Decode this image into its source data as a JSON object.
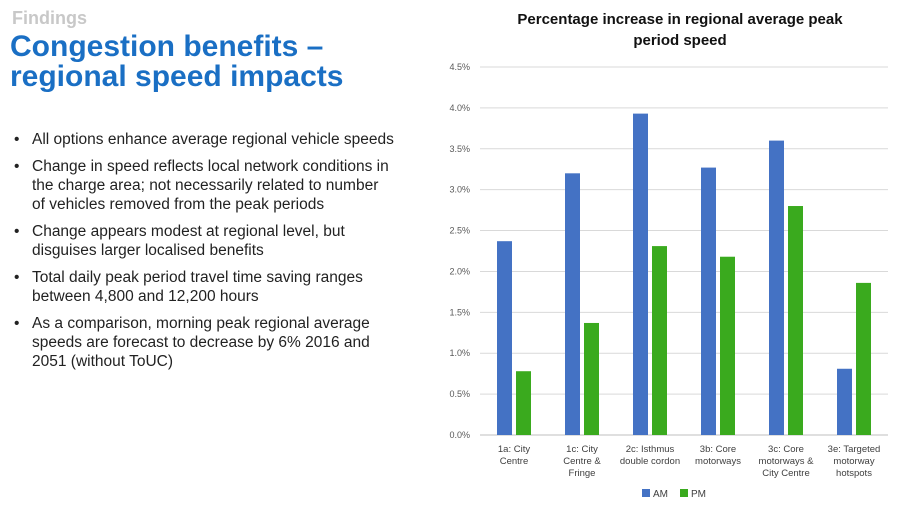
{
  "slide": {
    "section": "Findings",
    "title_line1": "Congestion benefits –",
    "title_line2": "regional speed impacts",
    "bullets": [
      "All options enhance average regional vehicle speeds",
      "Change in speed reflects local network conditions in the charge area; not necessarily related to number of vehicles removed from the peak periods",
      "Change appears modest at regional level, but disguises larger localised benefits",
      "Total daily peak period travel time saving ranges between 4,800 and 12,200 hours",
      "As a comparison, morning peak regional average speeds are forecast to decrease by 6% 2016 and 2051 (without ToUC)"
    ]
  },
  "colors": {
    "am": "#4472c4",
    "pm": "#3aaa1e",
    "title_blue": "#1a6fc4"
  },
  "chart_data": {
    "type": "bar",
    "title_line1": "Percentage increase in regional average peak",
    "title_line2": "period speed",
    "categories": [
      [
        "1a: City",
        "Centre"
      ],
      [
        "1c: City",
        "Centre &",
        "Fringe"
      ],
      [
        "2c: Isthmus",
        "double cordon"
      ],
      [
        "3b: Core",
        "motorways"
      ],
      [
        "3c: Core",
        "motorways &",
        "City Centre"
      ],
      [
        "3e: Targeted",
        "motorway",
        "hotspots"
      ]
    ],
    "series": [
      {
        "name": "AM",
        "values": [
          2.37,
          3.2,
          3.93,
          3.27,
          3.6,
          0.81
        ]
      },
      {
        "name": "PM",
        "values": [
          0.78,
          1.37,
          2.31,
          2.18,
          2.8,
          1.86
        ]
      }
    ],
    "ylim": [
      0,
      4.5
    ],
    "yticks": [
      "0.0%",
      "0.5%",
      "1.0%",
      "1.5%",
      "2.0%",
      "2.5%",
      "3.0%",
      "3.5%",
      "4.0%",
      "4.5%"
    ],
    "grid": true,
    "legend": "bottom"
  }
}
